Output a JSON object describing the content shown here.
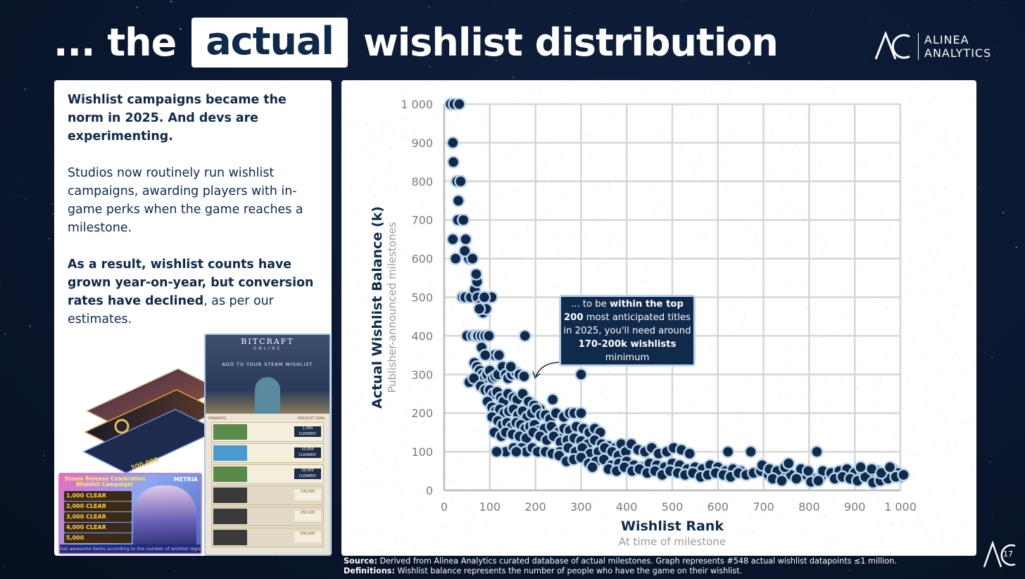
{
  "title": {
    "prefix": "... the",
    "highlight": "actual",
    "suffix": "wishlist distribution"
  },
  "logo": {
    "line1": "ALINEA",
    "line2": "ANALYTICS"
  },
  "left_panel": {
    "heading": "Wishlist campaigns became the norm in 2025. And devs are experimenting.",
    "paragraph": "Studios now routinely run wishlist campaigns, awarding players with in-game perks when the game reaches a milestone.",
    "conclusion_bold": "As a result, wishlist counts have grown year-on-year, but conversion rates have declined",
    "conclusion_rest": ", as per our estimates."
  },
  "collage": {
    "bitcraft_title": "BITCRAFT",
    "bitcraft_sub": "ONLINE",
    "bitcraft_cta": "ADD TO YOUR STEAM WISHLIST",
    "col_rewards": "REWARDS",
    "col_goal": "WISHLIST GOAL",
    "rows": [
      {
        "label": "1,000",
        "status": "CLEARED!"
      },
      {
        "label": "10,000",
        "status": "CLEARED!"
      },
      {
        "label": "20,000",
        "status": "CLEARED!"
      },
      {
        "label": "100,000",
        "status": ""
      },
      {
        "label": "250,000",
        "status": ""
      },
      {
        "label": "500,000",
        "status": ""
      }
    ],
    "metria_banner": "Steam Release Celebration Wishlist Campaign!",
    "metria_brand": "METRIA",
    "metria_items": [
      "1,000 CLEAR",
      "2,000 CLEAR",
      "3,000 CLEAR",
      "4,000 CLEAR",
      "5,000"
    ],
    "metria_footer": "Get awesome items according to the number of wishlist registrations!",
    "stack_label": "300,000"
  },
  "callout": {
    "pre": "... to be ",
    "bold1": "within the top 200",
    "mid": " most anticipated titles in 2025, you'll need around ",
    "bold2": "170-200k wishlists",
    "post": " minimum"
  },
  "footer": {
    "source_label": "Source:",
    "source_text": " Derived from Alinea Analytics curated database of actual milestones. Graph represents #548 actual wishlist datapoints ≤1 million.",
    "def_label": "Definitions:",
    "def_text": " Wishlist balance represents the number of people who have the game on their wishlist."
  },
  "page_number": "17",
  "colors": {
    "navy": "#0f2a4a",
    "point_edge": "#b9d2ec",
    "grid": "#d6d6d6",
    "background": "#0a1730"
  },
  "chart_data": {
    "type": "scatter",
    "title": "",
    "xlabel": "Wishlist Rank",
    "xlabel_sub": "At time of milestone",
    "ylabel": "Actual Wishlist Balance (k)",
    "ylabel_sub": "Publisher-announced milestones",
    "xlim": [
      0,
      1000
    ],
    "ylim": [
      0,
      1000
    ],
    "x_ticks": [
      0,
      100,
      200,
      300,
      400,
      500,
      600,
      700,
      800,
      900,
      1000
    ],
    "x_tick_labels": [
      "0",
      "100",
      "200",
      "300",
      "400",
      "500",
      "600",
      "700",
      "800",
      "900",
      "1 000"
    ],
    "y_ticks": [
      0,
      100,
      200,
      300,
      400,
      500,
      600,
      700,
      800,
      900,
      1000
    ],
    "y_tick_labels": [
      "0",
      "100",
      "200",
      "300",
      "400",
      "500",
      "600",
      "700",
      "800",
      "900",
      "1 000"
    ],
    "grid": true,
    "points": [
      [
        14,
        1000
      ],
      [
        22,
        1000
      ],
      [
        33,
        1000
      ],
      [
        19,
        900
      ],
      [
        20,
        850
      ],
      [
        28,
        800
      ],
      [
        36,
        800
      ],
      [
        31,
        750
      ],
      [
        47,
        650
      ],
      [
        54,
        600
      ],
      [
        45,
        620
      ],
      [
        19,
        650
      ],
      [
        25,
        600
      ],
      [
        30,
        700
      ],
      [
        42,
        700
      ],
      [
        62,
        600
      ],
      [
        40,
        500
      ],
      [
        46,
        500
      ],
      [
        58,
        500
      ],
      [
        67,
        520
      ],
      [
        72,
        540
      ],
      [
        70,
        560
      ],
      [
        73,
        500
      ],
      [
        80,
        480
      ],
      [
        85,
        460
      ],
      [
        92,
        470
      ],
      [
        104,
        500
      ],
      [
        88,
        500
      ],
      [
        77,
        470
      ],
      [
        50,
        400
      ],
      [
        62,
        400
      ],
      [
        70,
        400
      ],
      [
        74,
        400
      ],
      [
        82,
        400
      ],
      [
        90,
        400
      ],
      [
        98,
        400
      ],
      [
        177,
        400
      ],
      [
        110,
        350
      ],
      [
        120,
        350
      ],
      [
        82,
        370
      ],
      [
        90,
        350
      ],
      [
        66,
        330
      ],
      [
        72,
        320
      ],
      [
        78,
        310
      ],
      [
        84,
        300
      ],
      [
        88,
        290
      ],
      [
        94,
        300
      ],
      [
        100,
        310
      ],
      [
        106,
        290
      ],
      [
        112,
        295
      ],
      [
        118,
        300
      ],
      [
        128,
        320
      ],
      [
        135,
        300
      ],
      [
        140,
        290
      ],
      [
        148,
        300
      ],
      [
        158,
        305
      ],
      [
        165,
        300
      ],
      [
        175,
        295
      ],
      [
        146,
        320
      ],
      [
        300,
        300
      ],
      [
        55,
        280
      ],
      [
        65,
        290
      ],
      [
        80,
        270
      ],
      [
        90,
        260
      ],
      [
        100,
        260
      ],
      [
        108,
        250
      ],
      [
        116,
        255
      ],
      [
        124,
        240
      ],
      [
        130,
        230
      ],
      [
        140,
        250
      ],
      [
        152,
        240
      ],
      [
        160,
        235
      ],
      [
        172,
        250
      ],
      [
        185,
        230
      ],
      [
        197,
        220
      ],
      [
        210,
        210
      ],
      [
        238,
        235
      ],
      [
        95,
        230
      ],
      [
        105,
        215
      ],
      [
        113,
        205
      ],
      [
        122,
        210
      ],
      [
        132,
        200
      ],
      [
        142,
        205
      ],
      [
        152,
        210
      ],
      [
        162,
        195
      ],
      [
        172,
        205
      ],
      [
        182,
        190
      ],
      [
        192,
        200
      ],
      [
        202,
        210
      ],
      [
        212,
        195
      ],
      [
        222,
        195
      ],
      [
        232,
        185
      ],
      [
        245,
        200
      ],
      [
        262,
        190
      ],
      [
        275,
        200
      ],
      [
        285,
        200
      ],
      [
        300,
        200
      ],
      [
        105,
        190
      ],
      [
        118,
        180
      ],
      [
        128,
        170
      ],
      [
        138,
        175
      ],
      [
        148,
        165
      ],
      [
        158,
        175
      ],
      [
        168,
        170
      ],
      [
        178,
        160
      ],
      [
        188,
        165
      ],
      [
        198,
        170
      ],
      [
        208,
        155
      ],
      [
        220,
        160
      ],
      [
        235,
        165
      ],
      [
        250,
        150
      ],
      [
        263,
        160
      ],
      [
        275,
        155
      ],
      [
        290,
        165
      ],
      [
        305,
        160
      ],
      [
        318,
        150
      ],
      [
        330,
        160
      ],
      [
        342,
        150
      ],
      [
        110,
        150
      ],
      [
        125,
        140
      ],
      [
        135,
        150
      ],
      [
        150,
        145
      ],
      [
        165,
        140
      ],
      [
        180,
        135
      ],
      [
        195,
        150
      ],
      [
        210,
        140
      ],
      [
        225,
        130
      ],
      [
        240,
        140
      ],
      [
        255,
        125
      ],
      [
        270,
        130
      ],
      [
        285,
        135
      ],
      [
        300,
        128
      ],
      [
        315,
        120
      ],
      [
        330,
        130
      ],
      [
        345,
        120
      ],
      [
        360,
        115
      ],
      [
        375,
        110
      ],
      [
        388,
        120
      ],
      [
        135,
        100
      ],
      [
        152,
        110
      ],
      [
        170,
        110
      ],
      [
        180,
        100
      ],
      [
        193,
        110
      ],
      [
        205,
        100
      ],
      [
        222,
        100
      ],
      [
        237,
        95
      ],
      [
        254,
        100
      ],
      [
        272,
        110
      ],
      [
        288,
        100
      ],
      [
        303,
        110
      ],
      [
        320,
        95
      ],
      [
        338,
        100
      ],
      [
        352,
        110
      ],
      [
        368,
        100
      ],
      [
        382,
        90
      ],
      [
        398,
        100
      ],
      [
        410,
        120
      ],
      [
        425,
        105
      ],
      [
        440,
        100
      ],
      [
        455,
        110
      ],
      [
        470,
        95
      ],
      [
        488,
        100
      ],
      [
        503,
        110
      ],
      [
        520,
        105
      ],
      [
        538,
        95
      ],
      [
        115,
        100
      ],
      [
        158,
        100
      ],
      [
        252,
        90
      ],
      [
        268,
        75
      ],
      [
        284,
        80
      ],
      [
        300,
        85
      ],
      [
        317,
        70
      ],
      [
        333,
        75
      ],
      [
        350,
        80
      ],
      [
        366,
        65
      ],
      [
        383,
        70
      ],
      [
        400,
        75
      ],
      [
        416,
        65
      ],
      [
        433,
        60
      ],
      [
        450,
        70
      ],
      [
        466,
        65
      ],
      [
        483,
        60
      ],
      [
        500,
        70
      ],
      [
        516,
        65
      ],
      [
        533,
        55
      ],
      [
        550,
        60
      ],
      [
        566,
        55
      ],
      [
        583,
        65
      ],
      [
        600,
        60
      ],
      [
        616,
        50
      ],
      [
        633,
        55
      ],
      [
        650,
        50
      ],
      [
        325,
        60
      ],
      [
        360,
        55
      ],
      [
        378,
        50
      ],
      [
        395,
        60
      ],
      [
        412,
        50
      ],
      [
        428,
        55
      ],
      [
        445,
        45
      ],
      [
        462,
        50
      ],
      [
        478,
        40
      ],
      [
        495,
        50
      ],
      [
        512,
        45
      ],
      [
        528,
        40
      ],
      [
        545,
        45
      ],
      [
        562,
        35
      ],
      [
        578,
        40
      ],
      [
        595,
        45
      ],
      [
        612,
        40
      ],
      [
        628,
        35
      ],
      [
        645,
        45
      ],
      [
        662,
        40
      ],
      [
        678,
        45
      ],
      [
        694,
        50
      ],
      [
        711,
        40
      ],
      [
        728,
        35
      ],
      [
        744,
        45
      ],
      [
        760,
        40
      ],
      [
        777,
        35
      ],
      [
        793,
        40
      ],
      [
        810,
        30
      ],
      [
        826,
        35
      ],
      [
        622,
        100
      ],
      [
        672,
        100
      ],
      [
        817,
        100
      ],
      [
        697,
        65
      ],
      [
        713,
        55
      ],
      [
        730,
        50
      ],
      [
        747,
        60
      ],
      [
        755,
        70
      ],
      [
        782,
        55
      ],
      [
        798,
        50
      ],
      [
        830,
        50
      ],
      [
        848,
        45
      ],
      [
        866,
        50
      ],
      [
        883,
        55
      ],
      [
        900,
        45
      ],
      [
        917,
        50
      ],
      [
        933,
        45
      ],
      [
        950,
        50
      ],
      [
        966,
        40
      ],
      [
        983,
        55
      ],
      [
        995,
        45
      ],
      [
        1000,
        35
      ],
      [
        720,
        30
      ],
      [
        740,
        25
      ],
      [
        772,
        30
      ],
      [
        804,
        22
      ],
      [
        820,
        25
      ],
      [
        856,
        30
      ],
      [
        873,
        35
      ],
      [
        890,
        30
      ],
      [
        906,
        25
      ],
      [
        923,
        35
      ],
      [
        940,
        20
      ],
      [
        956,
        25
      ],
      [
        973,
        30
      ],
      [
        990,
        35
      ],
      [
        913,
        60
      ],
      [
        937,
        55
      ],
      [
        958,
        45
      ],
      [
        977,
        60
      ],
      [
        1007,
        40
      ]
    ]
  }
}
